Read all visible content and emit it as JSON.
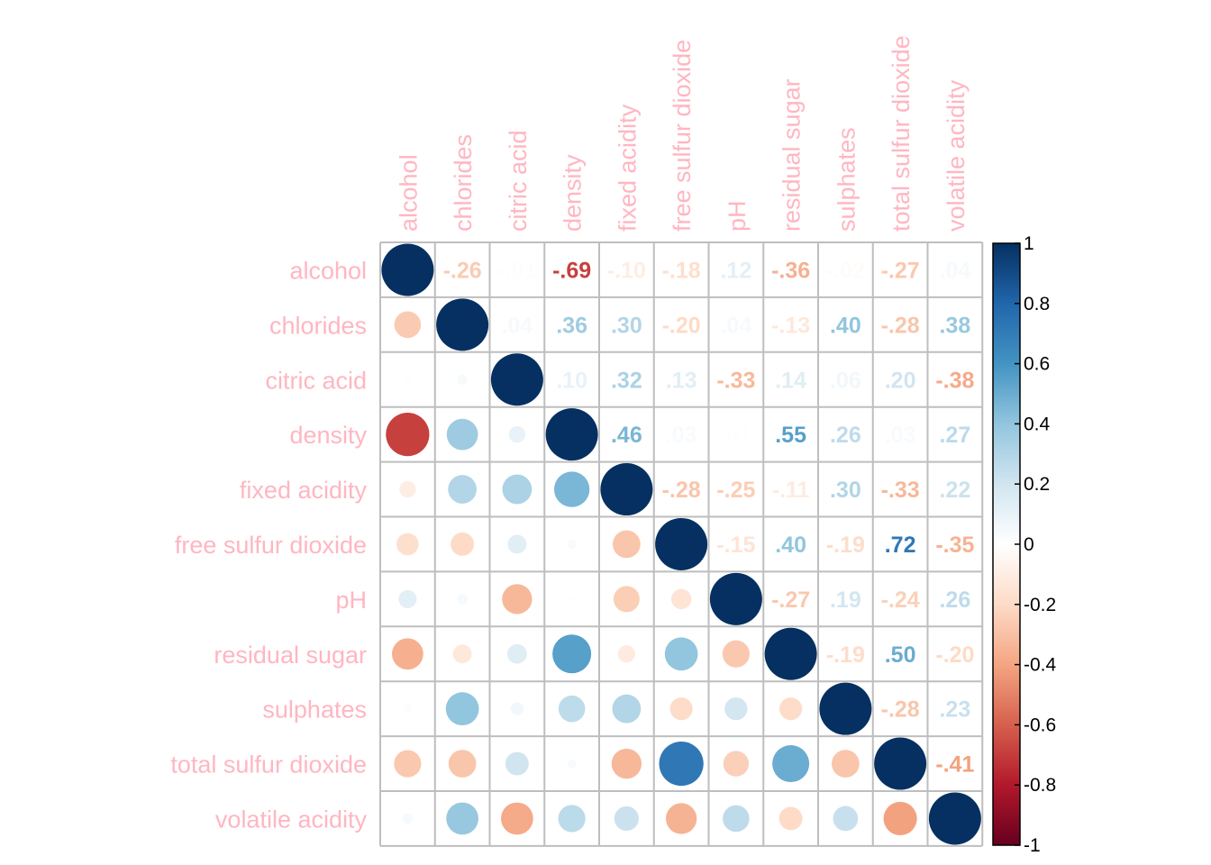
{
  "chart_data": {
    "type": "heatmap",
    "title": "",
    "variables": [
      "alcohol",
      "chlorides",
      "citric acid",
      "density",
      "fixed acidity",
      "free sulfur dioxide",
      "pH",
      "residual sugar",
      "sulphates",
      "total sulfur dioxide",
      "volatile acidity"
    ],
    "matrix": [
      [
        1.0,
        -0.26,
        -0.01,
        -0.69,
        -0.1,
        -0.18,
        0.12,
        -0.36,
        -0.02,
        -0.27,
        0.04
      ],
      [
        -0.26,
        1.0,
        0.04,
        0.36,
        0.3,
        -0.2,
        0.04,
        -0.13,
        0.4,
        -0.28,
        0.38
      ],
      [
        -0.01,
        0.04,
        1.0,
        0.1,
        0.32,
        0.13,
        -0.33,
        0.14,
        0.06,
        0.2,
        -0.38
      ],
      [
        -0.69,
        0.36,
        0.1,
        1.0,
        0.46,
        0.03,
        0.01,
        0.55,
        0.26,
        0.03,
        0.27
      ],
      [
        -0.1,
        0.3,
        0.32,
        0.46,
        1.0,
        -0.28,
        -0.25,
        -0.11,
        0.3,
        -0.33,
        0.22
      ],
      [
        -0.18,
        -0.2,
        0.13,
        0.03,
        -0.28,
        1.0,
        -0.15,
        0.4,
        -0.19,
        0.72,
        -0.35
      ],
      [
        0.12,
        0.04,
        -0.33,
        0.01,
        -0.25,
        -0.15,
        1.0,
        -0.27,
        0.19,
        -0.24,
        0.26
      ],
      [
        -0.36,
        -0.13,
        0.14,
        0.55,
        -0.11,
        0.4,
        -0.27,
        1.0,
        -0.19,
        0.5,
        -0.2
      ],
      [
        -0.02,
        0.4,
        0.06,
        0.26,
        0.3,
        -0.19,
        0.19,
        -0.19,
        1.0,
        -0.28,
        0.23
      ],
      [
        -0.27,
        -0.28,
        0.2,
        0.03,
        -0.33,
        0.72,
        -0.24,
        0.5,
        -0.28,
        1.0,
        -0.41
      ],
      [
        0.04,
        0.38,
        -0.38,
        0.27,
        0.22,
        -0.35,
        0.26,
        -0.2,
        0.23,
        -0.41,
        1.0
      ]
    ],
    "legend": {
      "range": [
        -1,
        1
      ],
      "ticks": [
        "1",
        "0.8",
        "0.6",
        "0.4",
        "0.2",
        "0",
        "-0.2",
        "-0.4",
        "-0.6",
        "-0.8",
        "-1"
      ],
      "placement": "right"
    },
    "lower_triangle": "circles",
    "upper_triangle": "numbers",
    "label_color": "#FFB6C1",
    "grid_color": "#BEBEBE",
    "palette": [
      "#67001F",
      "#B2182B",
      "#D6604D",
      "#F4A582",
      "#FDDBC7",
      "#FFFFFF",
      "#D1E5F0",
      "#92C5DE",
      "#4393C3",
      "#2166AC",
      "#053061"
    ]
  }
}
